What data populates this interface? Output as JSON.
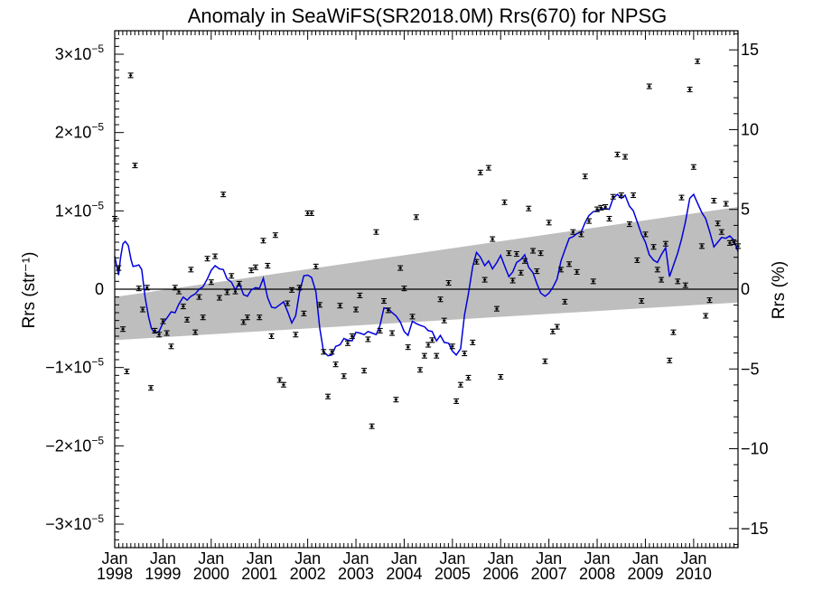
{
  "chart_data": {
    "type": "scatter",
    "title": "Anomaly in SeaWiFS(SR2018.0M) Rrs(670) for NPSG",
    "ylabel_left": "Rrs (str⁻¹)",
    "ylabel_right": "Rrs (%)",
    "xlim": [
      1998.0,
      2010.92
    ],
    "ylim_left": [
      -3.3e-05,
      3.3e-05
    ],
    "ylim_right": [
      -16.2,
      16.2
    ],
    "x_ticks": [
      {
        "month": "Jan",
        "year": "1998",
        "x": 1998.0
      },
      {
        "month": "Jan",
        "year": "1999",
        "x": 1999.0
      },
      {
        "month": "Jan",
        "year": "2000",
        "x": 2000.0
      },
      {
        "month": "Jan",
        "year": "2001",
        "x": 2001.0
      },
      {
        "month": "Jan",
        "year": "2002",
        "x": 2002.0
      },
      {
        "month": "Jan",
        "year": "2003",
        "x": 2003.0
      },
      {
        "month": "Jan",
        "year": "2004",
        "x": 2004.0
      },
      {
        "month": "Jan",
        "year": "2005",
        "x": 2005.0
      },
      {
        "month": "Jan",
        "year": "2006",
        "x": 2006.0
      },
      {
        "month": "Jan",
        "year": "2007",
        "x": 2007.0
      },
      {
        "month": "Jan",
        "year": "2008",
        "x": 2008.0
      },
      {
        "month": "Jan",
        "year": "2009",
        "x": 2009.0
      },
      {
        "month": "Jan",
        "year": "2010",
        "x": 2010.0
      }
    ],
    "y_ticks_left": [
      {
        "value": 3e-05,
        "base": "3×10",
        "exp": "−5"
      },
      {
        "value": 2e-05,
        "base": "2×10",
        "exp": "−5"
      },
      {
        "value": 1e-05,
        "base": "1×10",
        "exp": "−5"
      },
      {
        "value": 0,
        "base": "0",
        "exp": ""
      },
      {
        "value": -1e-05,
        "base": "−1×10",
        "exp": "−5"
      },
      {
        "value": -2e-05,
        "base": "−2×10",
        "exp": "−5"
      },
      {
        "value": -3e-05,
        "base": "−3×10",
        "exp": "−5"
      }
    ],
    "y_ticks_right": [
      {
        "value": 15,
        "label": "15"
      },
      {
        "value": 10,
        "label": "10"
      },
      {
        "value": 5,
        "label": "5"
      },
      {
        "value": 0,
        "label": "0"
      },
      {
        "value": -5,
        "label": "−5"
      },
      {
        "value": -10,
        "label": "−10"
      },
      {
        "value": -15,
        "label": "−15"
      }
    ],
    "zero_line": 0,
    "trend_band": {
      "x_start": 1998.0,
      "x_end": 2010.92,
      "lower_start": -6.5e-06,
      "upper_start": -1e-06,
      "lower_end": -1.7e-06,
      "upper_end": 1.05e-05,
      "color": "#bebebe"
    },
    "points_color": "#000000",
    "line_color": "#0000dd",
    "points": [
      [
        1998.0,
        9e-06
      ],
      [
        1998.08,
        2.7e-06
      ],
      [
        1998.17,
        -5.1e-06
      ],
      [
        1998.25,
        -1.05e-05
      ],
      [
        1998.33,
        2.73e-05
      ],
      [
        1998.42,
        1.58e-05
      ],
      [
        1998.5,
        1e-07
      ],
      [
        1998.58,
        -2.6e-06
      ],
      [
        1998.67,
        2e-07
      ],
      [
        1998.75,
        -1.26e-05
      ],
      [
        1998.83,
        -5.3e-06
      ],
      [
        1998.92,
        -5.8e-06
      ],
      [
        1999.0,
        -4.1e-06
      ],
      [
        1999.08,
        -5.6e-06
      ],
      [
        1999.17,
        -7.3e-06
      ],
      [
        1999.25,
        2e-07
      ],
      [
        1999.33,
        -3e-07
      ],
      [
        1999.42,
        -2.2e-06
      ],
      [
        1999.5,
        -3.9e-06
      ],
      [
        1999.58,
        2.5e-06
      ],
      [
        1999.67,
        -5.5e-06
      ],
      [
        1999.75,
        -1e-06
      ],
      [
        1999.83,
        -3.6e-06
      ],
      [
        1999.92,
        3.9e-06
      ],
      [
        2000.0,
        9e-07
      ],
      [
        2000.08,
        4.2e-06
      ],
      [
        2000.17,
        -1.1e-06
      ],
      [
        2000.25,
        1.21e-05
      ],
      [
        2000.33,
        -4e-07
      ],
      [
        2000.42,
        1.7e-06
      ],
      [
        2000.5,
        -3e-07
      ],
      [
        2000.58,
        7e-07
      ],
      [
        2000.67,
        -4.2e-06
      ],
      [
        2000.75,
        -3.6e-06
      ],
      [
        2000.83,
        2.4e-06
      ],
      [
        2000.92,
        2.8e-06
      ],
      [
        2001.0,
        -3.6e-06
      ],
      [
        2001.08,
        6.2e-06
      ],
      [
        2001.17,
        3e-06
      ],
      [
        2001.25,
        -6e-06
      ],
      [
        2001.33,
        6.9e-06
      ],
      [
        2001.42,
        -1.16e-05
      ],
      [
        2001.5,
        -1.22e-05
      ],
      [
        2001.58,
        -1.8e-06
      ],
      [
        2001.67,
        -1e-07
      ],
      [
        2001.75,
        -5.8e-06
      ],
      [
        2001.83,
        2e-07
      ],
      [
        2001.92,
        -3.1e-06
      ],
      [
        2002.0,
        9.7e-06
      ],
      [
        2002.08,
        9.7e-06
      ],
      [
        2002.17,
        2.9e-06
      ],
      [
        2002.25,
        -2e-06
      ],
      [
        2002.33,
        -8e-06
      ],
      [
        2002.42,
        -1.37e-05
      ],
      [
        2002.5,
        -8e-06
      ],
      [
        2002.58,
        -9.6e-06
      ],
      [
        2002.67,
        -2.1e-06
      ],
      [
        2002.75,
        -1.11e-05
      ],
      [
        2002.83,
        -6.9e-06
      ],
      [
        2002.92,
        -6e-06
      ],
      [
        2003.0,
        -2.6e-06
      ],
      [
        2003.08,
        -8e-07
      ],
      [
        2003.17,
        -1.04e-05
      ],
      [
        2003.25,
        -6.4e-06
      ],
      [
        2003.33,
        -1.75e-05
      ],
      [
        2003.42,
        7.3e-06
      ],
      [
        2003.5,
        -5.3e-06
      ],
      [
        2003.58,
        -1.5e-06
      ],
      [
        2003.67,
        -2.7e-06
      ],
      [
        2003.75,
        -5.6e-06
      ],
      [
        2003.83,
        -1.41e-05
      ],
      [
        2003.92,
        2.7e-06
      ],
      [
        2004.0,
        1e-07
      ],
      [
        2004.08,
        -7.4e-06
      ],
      [
        2004.17,
        -3.5e-06
      ],
      [
        2004.25,
        9.2e-06
      ],
      [
        2004.33,
        -1.03e-05
      ],
      [
        2004.42,
        -8.5e-06
      ],
      [
        2004.5,
        -7.1e-06
      ],
      [
        2004.58,
        -6.5e-06
      ],
      [
        2004.67,
        -8.5e-06
      ],
      [
        2004.75,
        -1.3e-06
      ],
      [
        2004.83,
        -4e-06
      ],
      [
        2004.92,
        8e-07
      ],
      [
        2005.0,
        -7.3e-06
      ],
      [
        2005.08,
        -1.43e-05
      ],
      [
        2005.17,
        -1.22e-05
      ],
      [
        2005.25,
        -8.2e-06
      ],
      [
        2005.33,
        -1.13e-05
      ],
      [
        2005.42,
        -6.8e-06
      ],
      [
        2005.5,
        3.5e-06
      ],
      [
        2005.58,
        1.49e-05
      ],
      [
        2005.67,
        1.2e-06
      ],
      [
        2005.75,
        1.55e-05
      ],
      [
        2005.83,
        6.4e-06
      ],
      [
        2005.92,
        -2.5e-06
      ],
      [
        2006.0,
        -1.12e-05
      ],
      [
        2006.08,
        1.11e-05
      ],
      [
        2006.17,
        4.6e-06
      ],
      [
        2006.25,
        1.1e-06
      ],
      [
        2006.33,
        4.5e-06
      ],
      [
        2006.42,
        2.1e-06
      ],
      [
        2006.5,
        3.6e-06
      ],
      [
        2006.58,
        1.03e-05
      ],
      [
        2006.67,
        4.9e-06
      ],
      [
        2006.75,
        2.3e-06
      ],
      [
        2006.83,
        4.6e-06
      ],
      [
        2006.92,
        -9.2e-06
      ],
      [
        2007.0,
        8.5e-06
      ],
      [
        2007.08,
        -5.4e-06
      ],
      [
        2007.17,
        -4.8e-06
      ],
      [
        2007.25,
        2.5e-06
      ],
      [
        2007.33,
        -1.6e-06
      ],
      [
        2007.42,
        3.2e-06
      ],
      [
        2007.5,
        7.3e-06
      ],
      [
        2007.58,
        2.2e-06
      ],
      [
        2007.67,
        7e-06
      ],
      [
        2007.75,
        1.44e-05
      ],
      [
        2007.83,
        8.7e-06
      ],
      [
        2007.92,
        1e-06
      ],
      [
        2008.0,
        1.02e-05
      ],
      [
        2008.08,
        1.04e-05
      ],
      [
        2008.17,
        1.05e-05
      ],
      [
        2008.25,
        9e-06
      ],
      [
        2008.33,
        1.18e-05
      ],
      [
        2008.42,
        1.72e-05
      ],
      [
        2008.5,
        1.2e-05
      ],
      [
        2008.58,
        1.69e-05
      ],
      [
        2008.67,
        8.3e-06
      ],
      [
        2008.75,
        1.2e-05
      ],
      [
        2008.83,
        3.7e-06
      ],
      [
        2008.92,
        -1.5e-06
      ],
      [
        2009.0,
        7e-06
      ],
      [
        2009.08,
        2.59e-05
      ],
      [
        2009.17,
        5.4e-06
      ],
      [
        2009.25,
        2.5e-06
      ],
      [
        2009.33,
        1.2e-06
      ],
      [
        2009.42,
        5.8e-06
      ],
      [
        2009.5,
        -9.1e-06
      ],
      [
        2009.58,
        -5.5e-06
      ],
      [
        2009.67,
        1e-06
      ],
      [
        2009.75,
        1.17e-05
      ],
      [
        2009.83,
        5e-07
      ],
      [
        2009.92,
        2.55e-05
      ],
      [
        2010.0,
        1.56e-05
      ],
      [
        2010.08,
        2.91e-05
      ],
      [
        2010.17,
        5.5e-06
      ],
      [
        2010.25,
        -3.4e-06
      ],
      [
        2010.33,
        -1.4e-06
      ],
      [
        2010.42,
        1.13e-05
      ],
      [
        2010.5,
        8.4e-06
      ],
      [
        2010.58,
        7.3e-06
      ],
      [
        2010.67,
        1.09e-05
      ],
      [
        2010.75,
        5.9e-06
      ],
      [
        2010.83,
        6e-06
      ],
      [
        2010.92,
        5.5e-06
      ]
    ],
    "running_mean": [
      [
        1998.0,
        4.2e-06
      ],
      [
        1998.04,
        3e-06
      ],
      [
        1998.08,
        1.8e-06
      ],
      [
        1998.12,
        4e-06
      ],
      [
        1998.17,
        5.8e-06
      ],
      [
        1998.22,
        6.1e-06
      ],
      [
        1998.28,
        5.6e-06
      ],
      [
        1998.34,
        3.7e-06
      ],
      [
        1998.38,
        2.9e-06
      ],
      [
        1998.45,
        3e-06
      ],
      [
        1998.5,
        3.1e-06
      ],
      [
        1998.56,
        2.5e-06
      ],
      [
        1998.63,
        -1e-06
      ],
      [
        1998.7,
        -3.5e-06
      ],
      [
        1998.76,
        -5e-06
      ],
      [
        1998.83,
        -5.6e-06
      ],
      [
        1998.92,
        -5.4e-06
      ],
      [
        1999.0,
        -4.3e-06
      ],
      [
        1999.08,
        -3.7e-06
      ],
      [
        1999.17,
        -2.9e-06
      ],
      [
        1999.25,
        -3e-06
      ],
      [
        1999.33,
        -1.9e-06
      ],
      [
        1999.42,
        -1e-06
      ],
      [
        1999.5,
        -1.4e-06
      ],
      [
        1999.58,
        -9e-07
      ],
      [
        1999.67,
        -6e-07
      ],
      [
        1999.75,
        0.0
      ],
      [
        1999.83,
        3e-07
      ],
      [
        1999.92,
        1.3e-06
      ],
      [
        2000.0,
        2.4e-06
      ],
      [
        2000.08,
        3e-06
      ],
      [
        2000.17,
        2.6e-06
      ],
      [
        2000.25,
        2.5e-06
      ],
      [
        2000.33,
        1.3e-06
      ],
      [
        2000.42,
        9e-07
      ],
      [
        2000.5,
        -1e-07
      ],
      [
        2000.58,
        8e-07
      ],
      [
        2000.67,
        -7e-07
      ],
      [
        2000.75,
        -9e-07
      ],
      [
        2000.83,
        -1e-07
      ],
      [
        2000.92,
        2e-07
      ],
      [
        2001.0,
        1e-07
      ],
      [
        2001.08,
        1.4e-06
      ],
      [
        2001.17,
        -1.1e-06
      ],
      [
        2001.25,
        -2.3e-06
      ],
      [
        2001.33,
        -2.4e-06
      ],
      [
        2001.42,
        -2e-06
      ],
      [
        2001.5,
        -1.6e-06
      ],
      [
        2001.58,
        -2.8e-06
      ],
      [
        2001.67,
        -4.3e-06
      ],
      [
        2001.75,
        -3.4e-06
      ],
      [
        2001.83,
        -4e-07
      ],
      [
        2001.92,
        1.7e-06
      ],
      [
        2002.0,
        1.8e-06
      ],
      [
        2002.08,
        1.5e-06
      ],
      [
        2002.17,
        -3e-07
      ],
      [
        2002.25,
        -5e-06
      ],
      [
        2002.33,
        -8e-06
      ],
      [
        2002.42,
        -8.5e-06
      ],
      [
        2002.5,
        -8.4e-06
      ],
      [
        2002.58,
        -7.3e-06
      ],
      [
        2002.67,
        -7.1e-06
      ],
      [
        2002.75,
        -6.3e-06
      ],
      [
        2002.83,
        -6.5e-06
      ],
      [
        2002.92,
        -6.6e-06
      ],
      [
        2003.0,
        -5.5e-06
      ],
      [
        2003.08,
        -5.6e-06
      ],
      [
        2003.17,
        -5.8e-06
      ],
      [
        2003.25,
        -5.4e-06
      ],
      [
        2003.33,
        -5.6e-06
      ],
      [
        2003.42,
        -5.8e-06
      ],
      [
        2003.5,
        -4.6e-06
      ],
      [
        2003.58,
        -2.4e-06
      ],
      [
        2003.67,
        -2.5e-06
      ],
      [
        2003.75,
        -3e-06
      ],
      [
        2003.83,
        -3.4e-06
      ],
      [
        2003.92,
        -4.2e-06
      ],
      [
        2004.0,
        -5.4e-06
      ],
      [
        2004.08,
        -5.9e-06
      ],
      [
        2004.17,
        -4.1e-06
      ],
      [
        2004.25,
        -4.4e-06
      ],
      [
        2004.33,
        -4.6e-06
      ],
      [
        2004.42,
        -4.8e-06
      ],
      [
        2004.5,
        -5.3e-06
      ],
      [
        2004.58,
        -5.4e-06
      ],
      [
        2004.67,
        -6.6e-06
      ],
      [
        2004.75,
        -5.9e-06
      ],
      [
        2004.83,
        -6.8e-06
      ],
      [
        2004.92,
        -6.9e-06
      ],
      [
        2005.0,
        -7.9e-06
      ],
      [
        2005.08,
        -8.4e-06
      ],
      [
        2005.17,
        -7.6e-06
      ],
      [
        2005.25,
        -3.3e-06
      ],
      [
        2005.33,
        -6e-07
      ],
      [
        2005.42,
        2.9e-06
      ],
      [
        2005.5,
        4.7e-06
      ],
      [
        2005.58,
        4.1e-06
      ],
      [
        2005.67,
        3e-06
      ],
      [
        2005.75,
        3.6e-06
      ],
      [
        2005.83,
        2.6e-06
      ],
      [
        2005.92,
        3.4e-06
      ],
      [
        2006.0,
        4.3e-06
      ],
      [
        2006.08,
        3e-06
      ],
      [
        2006.17,
        1.6e-06
      ],
      [
        2006.25,
        2.2e-06
      ],
      [
        2006.33,
        3.4e-06
      ],
      [
        2006.42,
        3.8e-06
      ],
      [
        2006.5,
        4.4e-06
      ],
      [
        2006.58,
        2.8e-06
      ],
      [
        2006.67,
        2.1e-06
      ],
      [
        2006.75,
        7e-07
      ],
      [
        2006.83,
        -5e-07
      ],
      [
        2006.92,
        -9e-07
      ],
      [
        2007.0,
        -5e-07
      ],
      [
        2007.08,
        2e-07
      ],
      [
        2007.17,
        1.3e-06
      ],
      [
        2007.25,
        3.6e-06
      ],
      [
        2007.33,
        5e-06
      ],
      [
        2007.42,
        6.5e-06
      ],
      [
        2007.5,
        6.7e-06
      ],
      [
        2007.58,
        7.1e-06
      ],
      [
        2007.67,
        7.3e-06
      ],
      [
        2007.75,
        8.5e-06
      ],
      [
        2007.83,
        9.4e-06
      ],
      [
        2007.92,
        9.9e-06
      ],
      [
        2008.0,
        1e-05
      ],
      [
        2008.08,
        1.02e-05
      ],
      [
        2008.17,
        1.03e-05
      ],
      [
        2008.25,
        1.02e-05
      ],
      [
        2008.33,
        1.16e-05
      ],
      [
        2008.42,
        1.21e-05
      ],
      [
        2008.5,
        1.16e-05
      ],
      [
        2008.58,
        1.2e-05
      ],
      [
        2008.67,
        1.06e-05
      ],
      [
        2008.75,
        1e-05
      ],
      [
        2008.83,
        8.6e-06
      ],
      [
        2008.92,
        7e-06
      ],
      [
        2009.0,
        6e-06
      ],
      [
        2009.08,
        4.4e-06
      ],
      [
        2009.17,
        3.7e-06
      ],
      [
        2009.25,
        3.4e-06
      ],
      [
        2009.33,
        4.4e-06
      ],
      [
        2009.42,
        5.3e-06
      ],
      [
        2009.5,
        1.6e-06
      ],
      [
        2009.58,
        3e-06
      ],
      [
        2009.67,
        4.6e-06
      ],
      [
        2009.75,
        6.4e-06
      ],
      [
        2009.83,
        8.6e-06
      ],
      [
        2009.92,
        1.16e-05
      ],
      [
        2010.0,
        1.21e-05
      ],
      [
        2010.08,
        1.1e-05
      ],
      [
        2010.17,
        9.8e-06
      ],
      [
        2010.25,
        9e-06
      ],
      [
        2010.33,
        7.4e-06
      ],
      [
        2010.42,
        5.4e-06
      ],
      [
        2010.5,
        6e-06
      ],
      [
        2010.58,
        6.6e-06
      ],
      [
        2010.67,
        6.5e-06
      ],
      [
        2010.75,
        6.8e-06
      ],
      [
        2010.83,
        6.3e-06
      ],
      [
        2010.92,
        4.8e-06
      ]
    ],
    "grid": false,
    "legend": "none"
  }
}
